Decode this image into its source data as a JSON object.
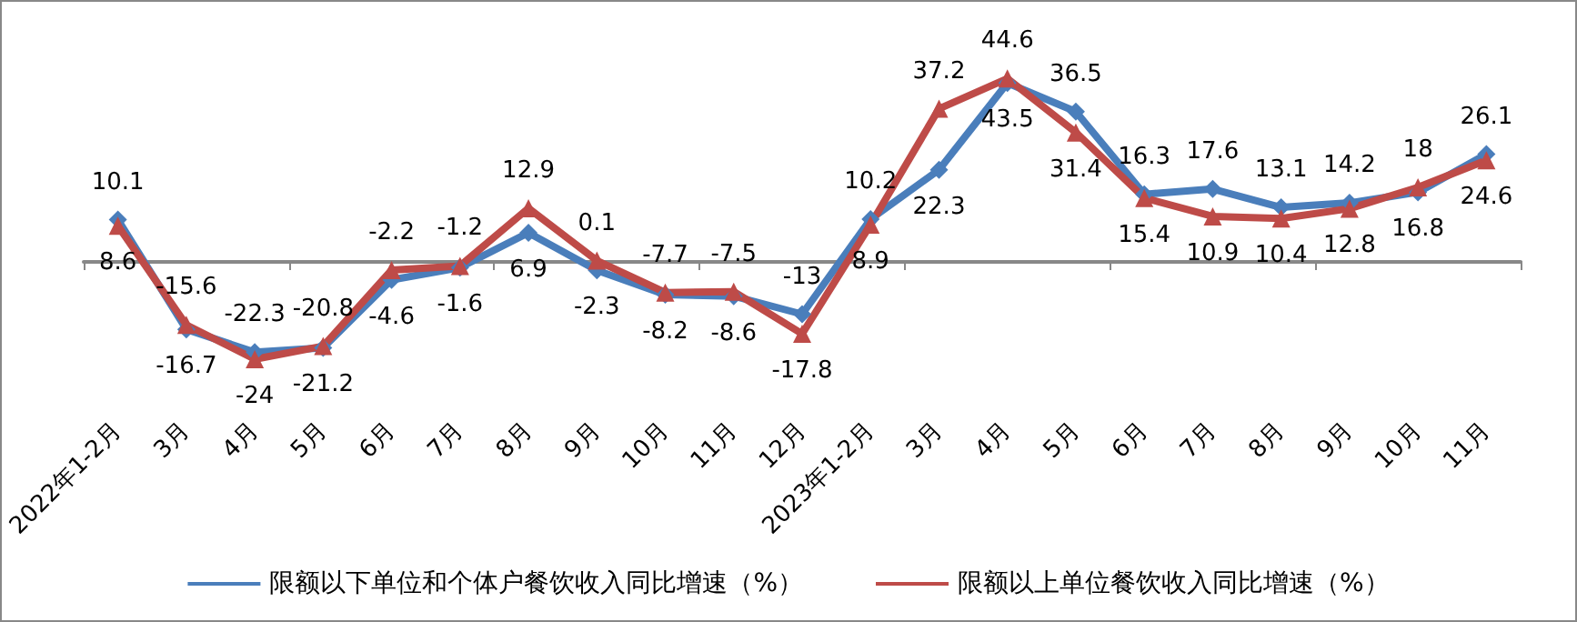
{
  "chart_data": {
    "type": "line",
    "categories": [
      "2022年1-2月",
      "3月",
      "4月",
      "5月",
      "6月",
      "7月",
      "8月",
      "9月",
      "10月",
      "11月",
      "12月",
      "2023年1-2月",
      "3月",
      "4月",
      "5月",
      "6月",
      "7月",
      "8月",
      "9月",
      "10月",
      "11月"
    ],
    "series": [
      {
        "name": "限额以下单位和个体户餐饮收入同比增速（%）",
        "color": "#4a7ebb",
        "marker": "diamond",
        "values": [
          10.1,
          -16.7,
          -22.3,
          -21.2,
          -4.6,
          -1.6,
          6.9,
          -2.3,
          -8.2,
          -8.6,
          -13,
          10.2,
          22.3,
          43.5,
          36.5,
          16.3,
          17.6,
          13.1,
          14.2,
          16.8,
          26.1
        ]
      },
      {
        "name": "限额以上单位餐饮收入同比增速（%）",
        "color": "#be4b48",
        "marker": "triangle",
        "values": [
          8.6,
          -15.6,
          -24,
          -20.8,
          -2.2,
          -1.2,
          12.9,
          0.1,
          -7.7,
          -7.5,
          -17.8,
          8.9,
          37.2,
          44.6,
          31.4,
          15.4,
          10.9,
          10.4,
          12.8,
          18,
          24.6
        ]
      }
    ],
    "data_labels": true,
    "legend": "bottom",
    "line_style": "solid"
  }
}
